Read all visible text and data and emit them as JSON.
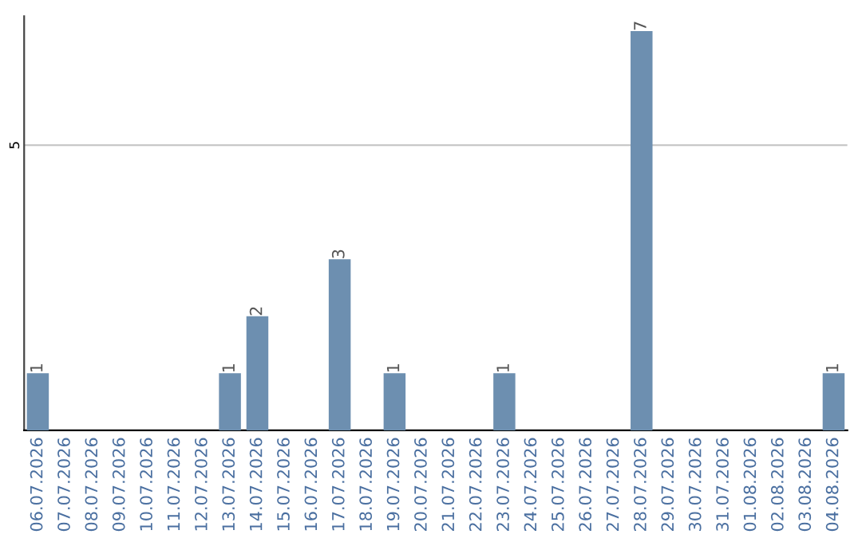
{
  "chart_data": {
    "type": "bar",
    "categories": [
      "06.07.2026",
      "07.07.2026",
      "08.07.2026",
      "09.07.2026",
      "10.07.2026",
      "11.07.2026",
      "12.07.2026",
      "13.07.2026",
      "14.07.2026",
      "15.07.2026",
      "16.07.2026",
      "17.07.2026",
      "18.07.2026",
      "19.07.2026",
      "20.07.2026",
      "21.07.2026",
      "22.07.2026",
      "23.07.2026",
      "24.07.2026",
      "25.07.2026",
      "26.07.2026",
      "27.07.2026",
      "28.07.2026",
      "29.07.2026",
      "30.07.2026",
      "31.07.2026",
      "01.08.2026",
      "02.08.2026",
      "03.08.2026",
      "04.08.2026"
    ],
    "values": [
      1,
      0,
      0,
      0,
      0,
      0,
      0,
      1,
      2,
      0,
      0,
      3,
      0,
      1,
      0,
      0,
      0,
      1,
      0,
      0,
      0,
      0,
      7,
      0,
      0,
      0,
      0,
      0,
      0,
      1
    ],
    "value_labels": [
      "1",
      null,
      null,
      null,
      null,
      null,
      null,
      "1",
      "2",
      null,
      null,
      "3",
      null,
      "1",
      null,
      null,
      null,
      "1",
      null,
      null,
      null,
      null,
      "7",
      null,
      null,
      null,
      null,
      null,
      null,
      "1"
    ],
    "color": "#6d8fb0",
    "ylim": [
      0,
      7.26
    ],
    "yticks": [
      5
    ],
    "grid": "y",
    "legend": false
  }
}
